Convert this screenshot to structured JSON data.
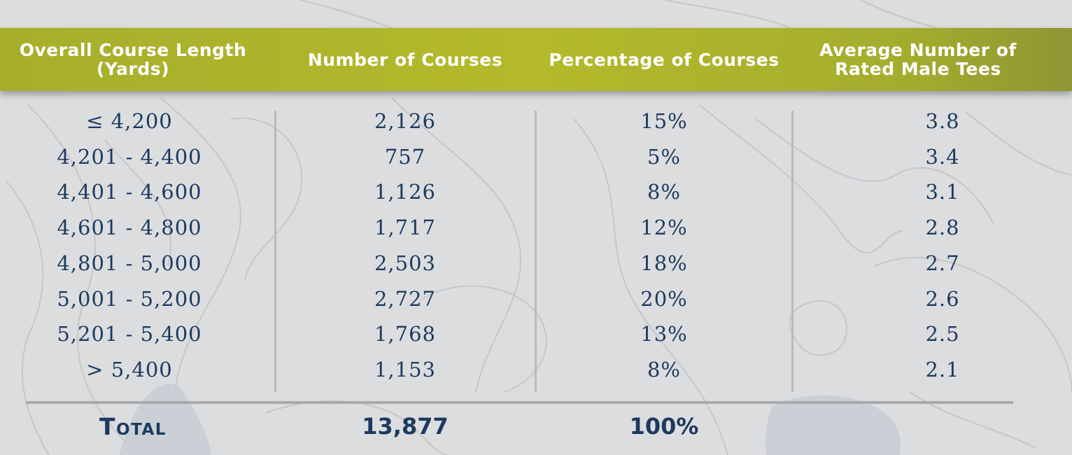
{
  "chart_data": {
    "type": "table",
    "columns": [
      "Overall Course Length (Yards)",
      "Number of Courses",
      "Percentage of Courses",
      "Average Number of Rated Male Tees"
    ],
    "rows": [
      [
        "≤ 4,200",
        "2,126",
        "15%",
        "3.8"
      ],
      [
        "4,201 - 4,400",
        "757",
        "5%",
        "3.4"
      ],
      [
        "4,401 - 4,600",
        "1,126",
        "8%",
        "3.1"
      ],
      [
        "4,601 - 4,800",
        "1,717",
        "12%",
        "2.8"
      ],
      [
        "4,801 - 5,000",
        "2,503",
        "18%",
        "2.7"
      ],
      [
        "5,001 - 5,200",
        "2,727",
        "20%",
        "2.6"
      ],
      [
        "5,201 - 5,400",
        "1,768",
        "13%",
        "2.5"
      ],
      [
        "> 5,400",
        "1,153",
        "8%",
        "2.1"
      ]
    ],
    "total": [
      "Total",
      "13,877",
      "100%",
      ""
    ]
  },
  "colors": {
    "header": "#b4ba2a",
    "text": "#1c3a5f",
    "background": "#dcdddf",
    "rule": "#a9aaac"
  }
}
